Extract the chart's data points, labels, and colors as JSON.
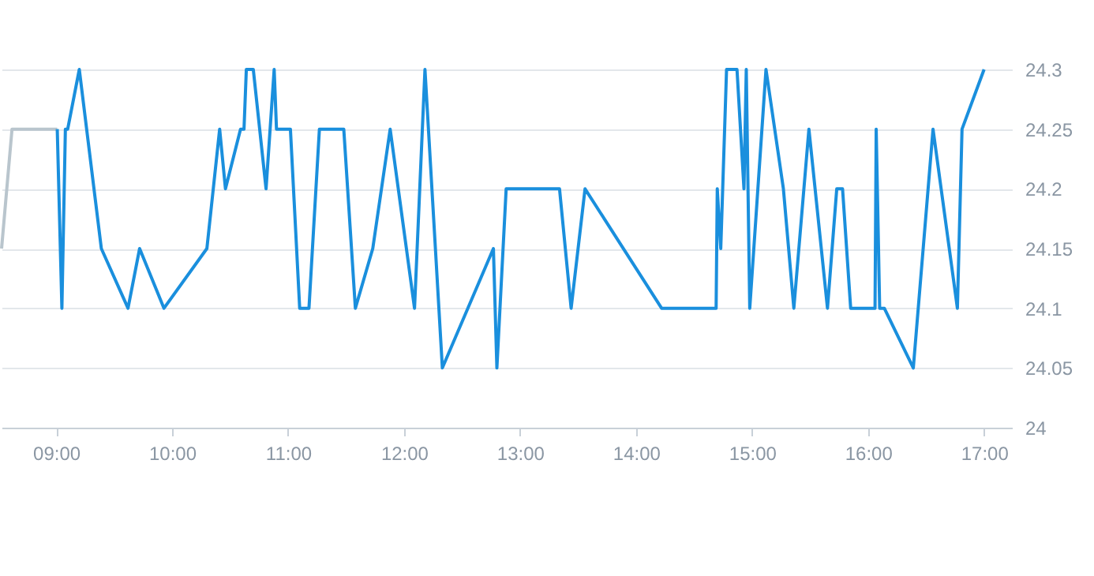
{
  "chart_data": {
    "type": "line",
    "xlim": [
      8.53,
      17.24
    ],
    "ylim": [
      24,
      24.3
    ],
    "xticks": [
      {
        "value": 9,
        "label": "09:00"
      },
      {
        "value": 10,
        "label": "10:00"
      },
      {
        "value": 11,
        "label": "11:00"
      },
      {
        "value": 12,
        "label": "12:00"
      },
      {
        "value": 13,
        "label": "13:00"
      },
      {
        "value": 14,
        "label": "14:00"
      },
      {
        "value": 15,
        "label": "15:00"
      },
      {
        "value": 16,
        "label": "16:00"
      },
      {
        "value": 17,
        "label": "17:00"
      }
    ],
    "yticks": [
      24,
      24.05,
      24.1,
      24.15,
      24.2,
      24.25,
      24.3
    ],
    "grid": "y",
    "line_style": "solid",
    "marker": "none",
    "series": [
      {
        "color": "#b9c5cd",
        "x": [
          8.53,
          8.62,
          9.01
        ],
        "values": [
          24.15,
          24.25,
          24.25
        ]
      },
      {
        "color": "#1a8fdd",
        "x": [
          9.01,
          9.05,
          9.08,
          9.1,
          9.2,
          9.39,
          9.62,
          9.72,
          9.93,
          10.3,
          10.41,
          10.46,
          10.59,
          10.62,
          10.64,
          10.7,
          10.81,
          10.88,
          10.9,
          11.02,
          11.1,
          11.18,
          11.27,
          11.48,
          11.58,
          11.73,
          11.88,
          12.09,
          12.18,
          12.33,
          12.77,
          12.8,
          12.88,
          13.34,
          13.44,
          13.56,
          14.22,
          14.69,
          14.7,
          14.73,
          14.78,
          14.87,
          14.93,
          14.95,
          14.98,
          15.12,
          15.27,
          15.36,
          15.49,
          15.65,
          15.73,
          15.78,
          15.85,
          16.06,
          16.07,
          16.1,
          16.14,
          16.39,
          16.56,
          16.77,
          16.81,
          17.0
        ],
        "values": [
          24.25,
          24.1,
          24.25,
          24.25,
          24.3,
          24.15,
          24.1,
          24.15,
          24.1,
          24.15,
          24.25,
          24.2,
          24.25,
          24.25,
          24.3,
          24.3,
          24.2,
          24.3,
          24.25,
          24.25,
          24.1,
          24.1,
          24.25,
          24.25,
          24.1,
          24.15,
          24.25,
          24.1,
          24.3,
          24.05,
          24.15,
          24.05,
          24.2,
          24.2,
          24.1,
          24.2,
          24.1,
          24.1,
          24.2,
          24.15,
          24.3,
          24.3,
          24.2,
          24.3,
          24.1,
          24.3,
          24.2,
          24.1,
          24.25,
          24.1,
          24.2,
          24.2,
          24.1,
          24.1,
          24.25,
          24.1,
          24.1,
          24.05,
          24.25,
          24.1,
          24.25,
          24.3
        ]
      }
    ]
  }
}
